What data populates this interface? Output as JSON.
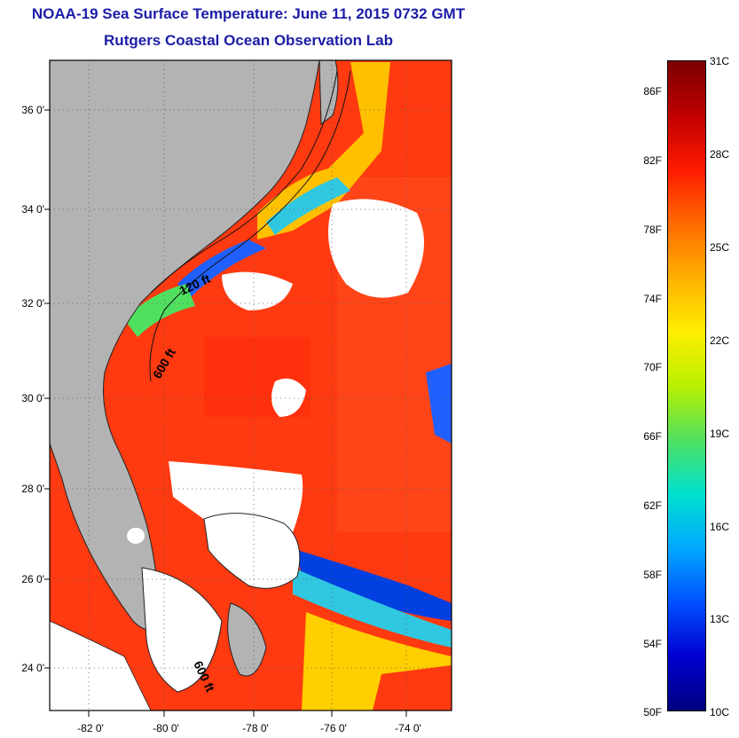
{
  "title_line1": "NOAA-19 Sea Surface Temperature:  June 11, 2015 0732 GMT",
  "title_line2": "Rutgers Coastal Ocean Observation Lab",
  "lat_labels": [
    "36 0'",
    "34 0'",
    "32 0'",
    "30 0'",
    "28 0'",
    "26 0'",
    "24 0'"
  ],
  "lon_labels": [
    "-82 0'",
    "-80 0'",
    "-78 0'",
    "-76 0'",
    "-74 0'"
  ],
  "contour_labels": [
    "120 ft",
    "600 ft",
    "600 ft"
  ],
  "colorbar": {
    "fahrenheit": [
      "86F",
      "82F",
      "78F",
      "74F",
      "70F",
      "66F",
      "62F",
      "58F",
      "54F",
      "50F"
    ],
    "celsius": [
      "31C",
      "28C",
      "25C",
      "22C",
      "19C",
      "16C",
      "13C",
      "10C"
    ],
    "colors": [
      "#7a0000",
      "#c00000",
      "#ff1a00",
      "#ff6a00",
      "#ffb000",
      "#ffee00",
      "#b8f000",
      "#50e060",
      "#00e0d0",
      "#00a8ff",
      "#0050ff",
      "#0000d0",
      "#000080"
    ]
  },
  "colors": {
    "land": "#b3b3b3",
    "title": "#1c1ca8",
    "warm_water": "#ff3a10",
    "cloud": "#ffffff"
  }
}
